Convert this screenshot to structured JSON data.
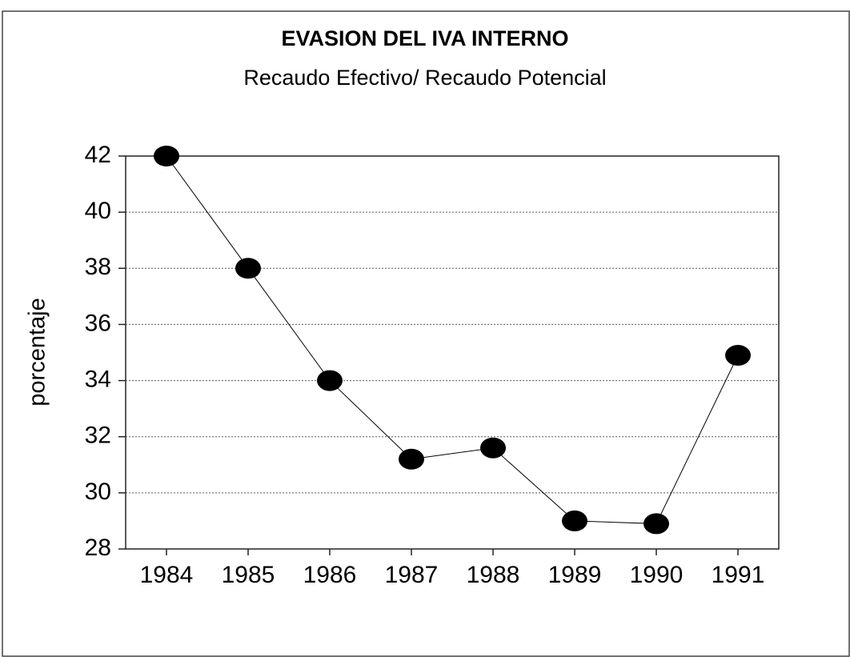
{
  "chart_data": {
    "type": "line",
    "title": "EVASION DEL IVA INTERNO",
    "subtitle": "Recaudo Efectivo/ Recaudo Potencial",
    "y_label": "porcentaje",
    "categories": [
      "1984",
      "1985",
      "1986",
      "1987",
      "1988",
      "1989",
      "1990",
      "1991"
    ],
    "values": [
      42,
      38,
      34,
      31.2,
      31.6,
      29.0,
      28.9,
      34.9
    ],
    "color": "#000000",
    "ylim": [
      28,
      42
    ],
    "yticks": [
      28,
      30,
      32,
      34,
      36,
      38,
      40,
      42
    ],
    "grid": true
  }
}
